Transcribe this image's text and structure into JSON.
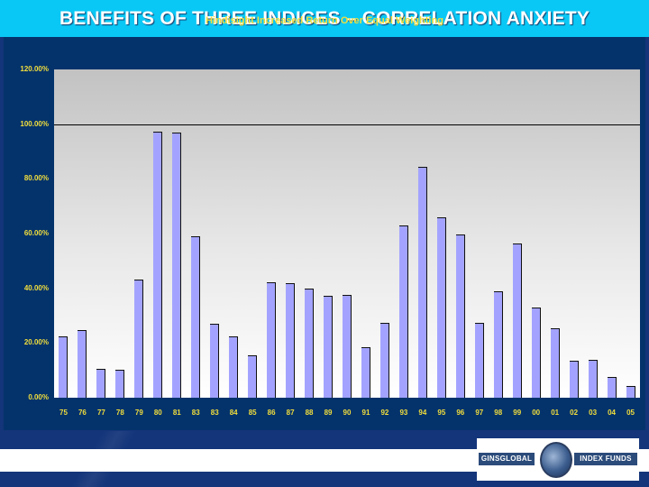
{
  "slide": {
    "title": "BENEFITS OF THREE INDICES – CORRELATION ANXIETY"
  },
  "logo": {
    "left_text": "GINSGLOBAL",
    "right_text": "INDEX FUNDS"
  },
  "colors": {
    "title_bar": "#0ac8f5",
    "panel": "#04336b",
    "bar_fill": "#a3a3ff",
    "axis_text": "#f2de3c"
  },
  "chart_data": {
    "type": "bar",
    "title": "Hindisight Increased Return Over Equal Weighting",
    "xlabel": "",
    "ylabel": "",
    "ylim": [
      0,
      120
    ],
    "yticks": [
      "0.00%",
      "20.00%",
      "40.00%",
      "60.00%",
      "80.00%",
      "100.00%",
      "120.00%"
    ],
    "reference_line": 100,
    "grid": false,
    "legend": null,
    "categories": [
      "75",
      "76",
      "77",
      "78",
      "79",
      "80",
      "81",
      "83",
      "83",
      "84",
      "85",
      "86",
      "87",
      "88",
      "89",
      "90",
      "91",
      "92",
      "93",
      "94",
      "95",
      "96",
      "97",
      "98",
      "99",
      "00",
      "01",
      "02",
      "03",
      "04",
      "05"
    ],
    "values": [
      22.4,
      24.7,
      10.5,
      10.2,
      43.2,
      97.3,
      97.0,
      59.0,
      27.0,
      22.4,
      15.5,
      42.2,
      41.9,
      39.9,
      37.3,
      37.6,
      18.5,
      27.4,
      63.0,
      84.5,
      66.0,
      59.7,
      27.4,
      38.9,
      56.4,
      33.0,
      25.4,
      13.5,
      13.9,
      7.6,
      4.3
    ],
    "unit": "%"
  }
}
